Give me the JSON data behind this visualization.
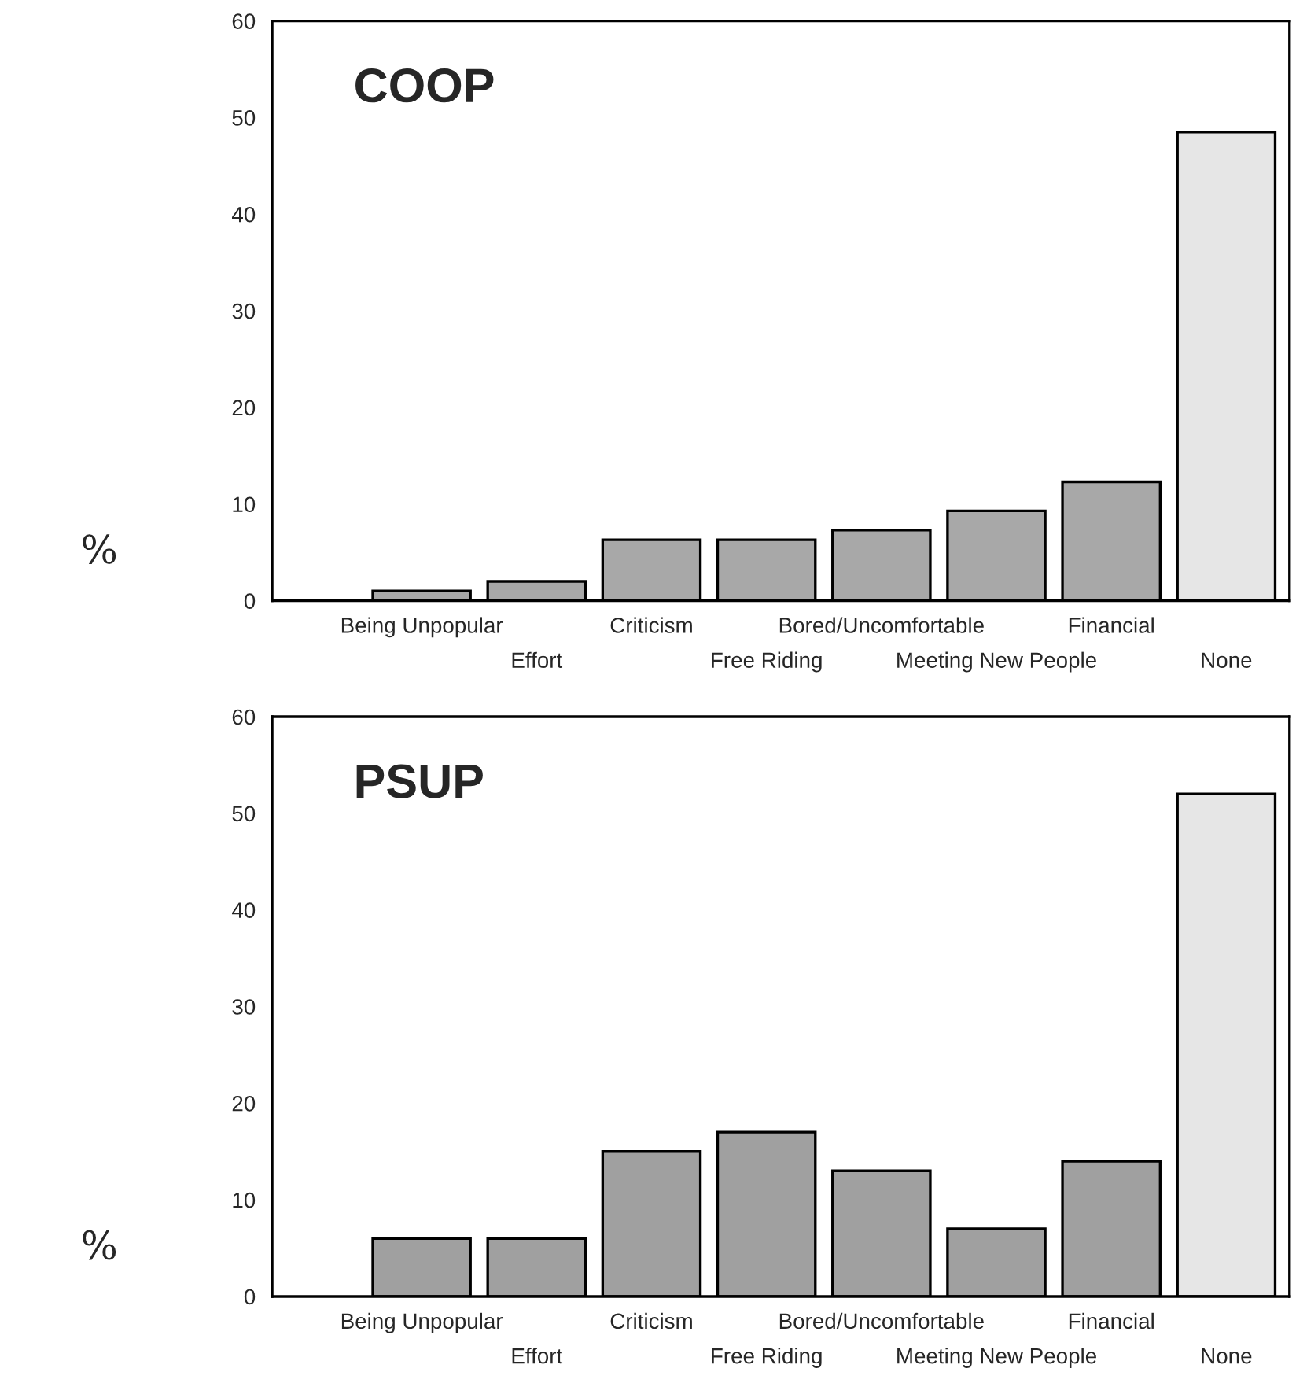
{
  "chart_data": [
    {
      "type": "bar",
      "title": "COOP",
      "ylabel": "%",
      "categories": [
        "Being Unpopular",
        "Effort",
        "Criticism",
        "Free Riding",
        "Bored/Uncomfortable",
        "Meeting New People",
        "Financial",
        "None"
      ],
      "values": [
        1,
        2,
        6.3,
        6.3,
        7.3,
        9.3,
        12.3,
        48.5
      ],
      "colors": [
        "#a8a8a8",
        "#a8a8a8",
        "#a8a8a8",
        "#a8a8a8",
        "#a8a8a8",
        "#a8a8a8",
        "#a8a8a8",
        "#e6e6e6"
      ],
      "ylim": [
        0,
        60
      ],
      "yticks": [
        0,
        10,
        20,
        30,
        40,
        50,
        60
      ],
      "grid": false
    },
    {
      "type": "bar",
      "title": "PSUP",
      "ylabel": "%",
      "categories": [
        "Being Unpopular",
        "Effort",
        "Criticism",
        "Free Riding",
        "Bored/Uncomfortable",
        "Meeting New People",
        "Financial",
        "None"
      ],
      "values": [
        6,
        6,
        15,
        17,
        13,
        7,
        14,
        52
      ],
      "colors": [
        "#a0a0a0",
        "#a0a0a0",
        "#a0a0a0",
        "#a0a0a0",
        "#a0a0a0",
        "#a0a0a0",
        "#a0a0a0",
        "#e6e6e6"
      ],
      "ylim": [
        0,
        60
      ],
      "yticks": [
        0,
        10,
        20,
        30,
        40,
        50,
        60
      ],
      "grid": false
    }
  ]
}
